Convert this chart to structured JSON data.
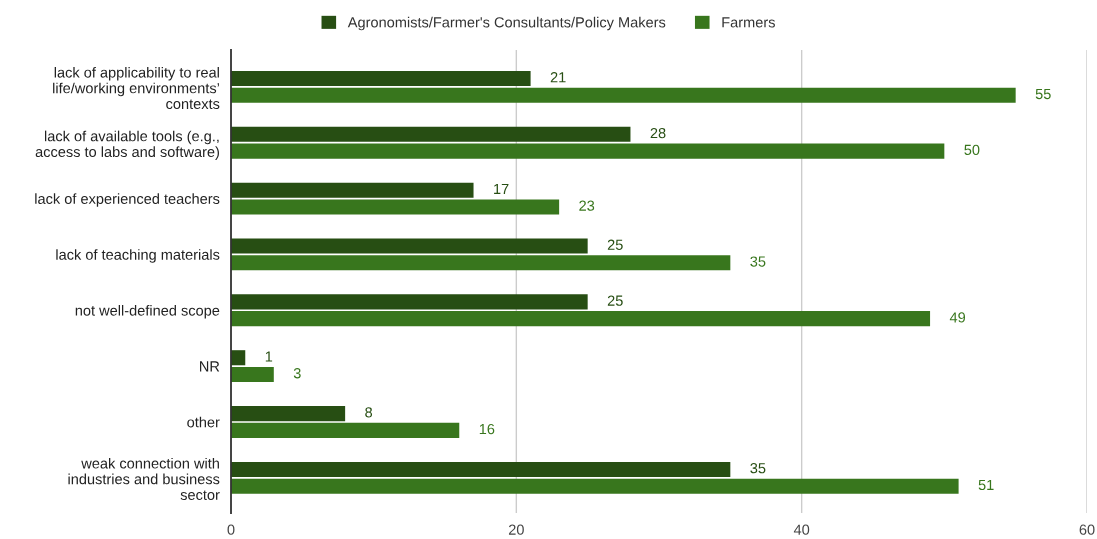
{
  "chart_data": {
    "type": "bar",
    "orientation": "horizontal",
    "categories": [
      "lack of applicability to real\nlife/working environments’\ncontexts",
      "lack of available tools (e.g.,\naccess to labs and software)",
      "lack of experienced teachers",
      "lack of teaching materials",
      "not well-defined scope",
      "NR",
      "other",
      "weak connection with\nindustries and business\nsector"
    ],
    "series": [
      {
        "name": "Agronomists/Farmer's Consultants/Policy Makers",
        "color": "#274e13",
        "values": [
          21,
          28,
          17,
          25,
          25,
          1,
          8,
          35
        ]
      },
      {
        "name": "Farmers",
        "color": "#38761d",
        "values": [
          55,
          50,
          23,
          35,
          49,
          3,
          16,
          51
        ]
      }
    ],
    "xlim": [
      0,
      60
    ],
    "xticks": [
      0,
      20,
      40,
      60
    ],
    "grid": "x",
    "legend": "top",
    "data_labels": true
  }
}
